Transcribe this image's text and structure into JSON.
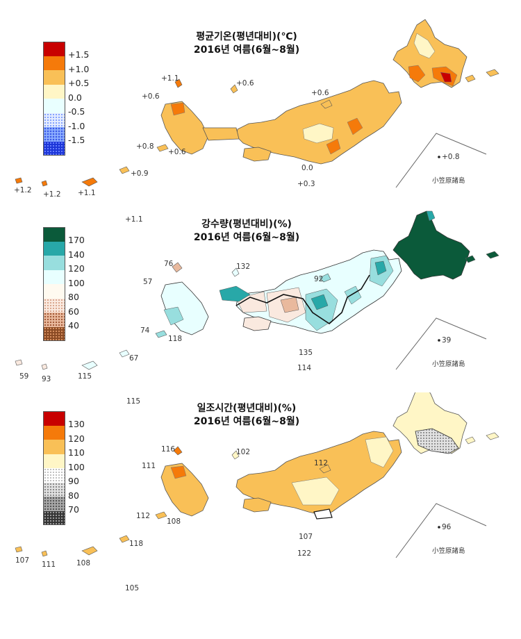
{
  "panels": [
    {
      "id": "temp",
      "title_line1": "평균기온(평년대비)(℃)",
      "title_line2": "2016년 여름(6월~8월)",
      "legend": [
        {
          "label": "+1.5",
          "color": "#c80000"
        },
        {
          "label": "+1.0",
          "color": "#f57a0a"
        },
        {
          "label": "+0.5",
          "color": "#f9c057"
        },
        {
          "label": "0.0",
          "color": "#fff6c6"
        },
        {
          "label": "-0.5",
          "color": "#e9ffff"
        },
        {
          "label": "-1.0",
          "color": "#dce6ff"
        },
        {
          "label": "-1.5",
          "color": "#8fb0ff"
        },
        {
          "label": "",
          "color": "#1d36d8"
        }
      ],
      "station_values": [
        "+1.1",
        "+0.6",
        "+0.6",
        "+0.6",
        "+0.8",
        "+0.6",
        "+0.9",
        "+1.2",
        "+1.2",
        "+1.1",
        "+1.1",
        "0.0",
        "+0.3",
        "+0.8"
      ],
      "ogasawara_label": "小笠原諸島"
    },
    {
      "id": "precip",
      "title_line1": "강수량(평년대비)(%)",
      "title_line2": "2016년 여름(6월~8월)",
      "legend": [
        {
          "label": "170",
          "color": "#0b5a3a"
        },
        {
          "label": "140",
          "color": "#28a8a8"
        },
        {
          "label": "120",
          "color": "#98dede"
        },
        {
          "label": "100",
          "color": "#e8ffff"
        },
        {
          "label": "80",
          "color": "#fffaf0"
        },
        {
          "label": "60",
          "color": "#fae9df"
        },
        {
          "label": "40",
          "color": "#e9b99d"
        },
        {
          "label": "",
          "color": "#8a4a24"
        }
      ],
      "station_values": [
        "76",
        "132",
        "57",
        "92",
        "74",
        "118",
        "59",
        "93",
        "115",
        "67",
        "135",
        "114",
        "115",
        "39"
      ],
      "ogasawara_label": "小笠原諸島"
    },
    {
      "id": "sun",
      "title_line1": "일조시간(평년대비)(%)",
      "title_line2": "2016년 여름(6월~8월)",
      "legend": [
        {
          "label": "130",
          "color": "#c80000"
        },
        {
          "label": "120",
          "color": "#f57a0a"
        },
        {
          "label": "110",
          "color": "#f9c057"
        },
        {
          "label": "100",
          "color": "#fff6c6"
        },
        {
          "label": "90",
          "color": "#ffffff"
        },
        {
          "label": "80",
          "color": "#e2e2e2"
        },
        {
          "label": "70",
          "color": "#a8a8a8"
        },
        {
          "label": "",
          "color": "#333333"
        }
      ],
      "station_values": [
        "116",
        "102",
        "111",
        "112",
        "112",
        "108",
        "107",
        "122",
        "107",
        "111",
        "108",
        "118",
        "105",
        "96"
      ],
      "ogasawara_label": "小笠原諸島"
    }
  ]
}
